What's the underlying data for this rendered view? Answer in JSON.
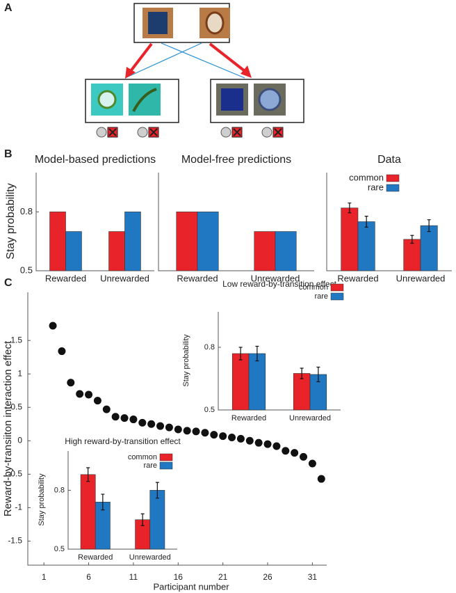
{
  "panel_labels": [
    "A",
    "B",
    "C"
  ],
  "chart_data": [
    {
      "type": "bar",
      "title": "Model-based predictions",
      "ylabel": "Stay probability",
      "categories": [
        "Rewarded",
        "Unrewarded"
      ],
      "series": [
        {
          "color": "#e8232a",
          "values": [
            0.8,
            0.7
          ]
        },
        {
          "color": "#1f78c1",
          "values": [
            0.7,
            0.8
          ]
        }
      ],
      "ylim": [
        0.5,
        1.0
      ],
      "yticks": [
        0.5,
        0.8
      ]
    },
    {
      "type": "bar",
      "title": "Model-free predictions",
      "categories": [
        "Rewarded",
        "Unrewarded"
      ],
      "series": [
        {
          "color": "#e8232a",
          "values": [
            0.8,
            0.7
          ]
        },
        {
          "color": "#1f78c1",
          "values": [
            0.8,
            0.7
          ]
        }
      ],
      "ylim": [
        0.5,
        1.0
      ]
    },
    {
      "type": "bar",
      "title": "Data",
      "categories": [
        "Rewarded",
        "Unrewarded"
      ],
      "series": [
        {
          "name": "common",
          "color": "#e8232a",
          "values": [
            0.82,
            0.66
          ],
          "errors": [
            0.025,
            0.02
          ]
        },
        {
          "name": "rare",
          "color": "#1f78c1",
          "values": [
            0.75,
            0.73
          ],
          "errors": [
            0.028,
            0.03
          ]
        }
      ],
      "ylim": [
        0.5,
        1.0
      ]
    },
    {
      "type": "scatter",
      "xlabel": "Participant number",
      "ylabel": "Reward-by-transiiton interaction effect",
      "x": [
        2,
        3,
        4,
        5,
        6,
        7,
        8,
        9,
        10,
        11,
        12,
        13,
        14,
        15,
        16,
        17,
        18,
        19,
        20,
        21,
        22,
        23,
        24,
        25,
        26,
        27,
        28,
        29,
        30,
        31,
        32
      ],
      "values": [
        1.72,
        1.34,
        0.87,
        0.7,
        0.69,
        0.6,
        0.47,
        0.36,
        0.34,
        0.32,
        0.27,
        0.25,
        0.22,
        0.2,
        0.17,
        0.15,
        0.14,
        0.12,
        0.09,
        0.07,
        0.05,
        0.03,
        0.0,
        -0.03,
        -0.05,
        -0.08,
        -0.15,
        -0.18,
        -0.24,
        -0.34,
        -0.57
      ],
      "color": "#111111",
      "xlim": [
        -0.8,
        32.6
      ],
      "ylim": [
        -1.86,
        2.22
      ],
      "xticks": [
        1,
        6,
        11,
        16,
        21,
        26,
        31
      ],
      "yticks": [
        -1.5,
        -1,
        -0.5,
        0,
        0.5,
        1,
        1.5
      ]
    },
    {
      "type": "bar",
      "title": "Low reward-by-transition effect",
      "ylabel": "Stay probability",
      "categories": [
        "Rewarded",
        "Unrewarded"
      ],
      "series": [
        {
          "name": "common",
          "color": "#e8232a",
          "values": [
            0.77,
            0.675
          ],
          "errors": [
            0.03,
            0.025
          ]
        },
        {
          "name": "rare",
          "color": "#1f78c1",
          "values": [
            0.77,
            0.67
          ],
          "errors": [
            0.035,
            0.035
          ]
        }
      ],
      "ylim": [
        0.5,
        0.97
      ],
      "yticks": [
        0.5,
        0.8
      ]
    },
    {
      "type": "bar",
      "title": "High reward-by-transition effect",
      "ylabel": "Stay probability",
      "categories": [
        "Rewarded",
        "Unrewarded"
      ],
      "series": [
        {
          "name": "common",
          "color": "#e8232a",
          "values": [
            0.88,
            0.65
          ],
          "errors": [
            0.035,
            0.03
          ]
        },
        {
          "name": "rare",
          "color": "#1f78c1",
          "values": [
            0.74,
            0.8
          ],
          "errors": [
            0.04,
            0.04
          ]
        }
      ],
      "ylim": [
        0.5,
        1.0
      ],
      "yticks": [
        0.5,
        0.8
      ]
    }
  ]
}
